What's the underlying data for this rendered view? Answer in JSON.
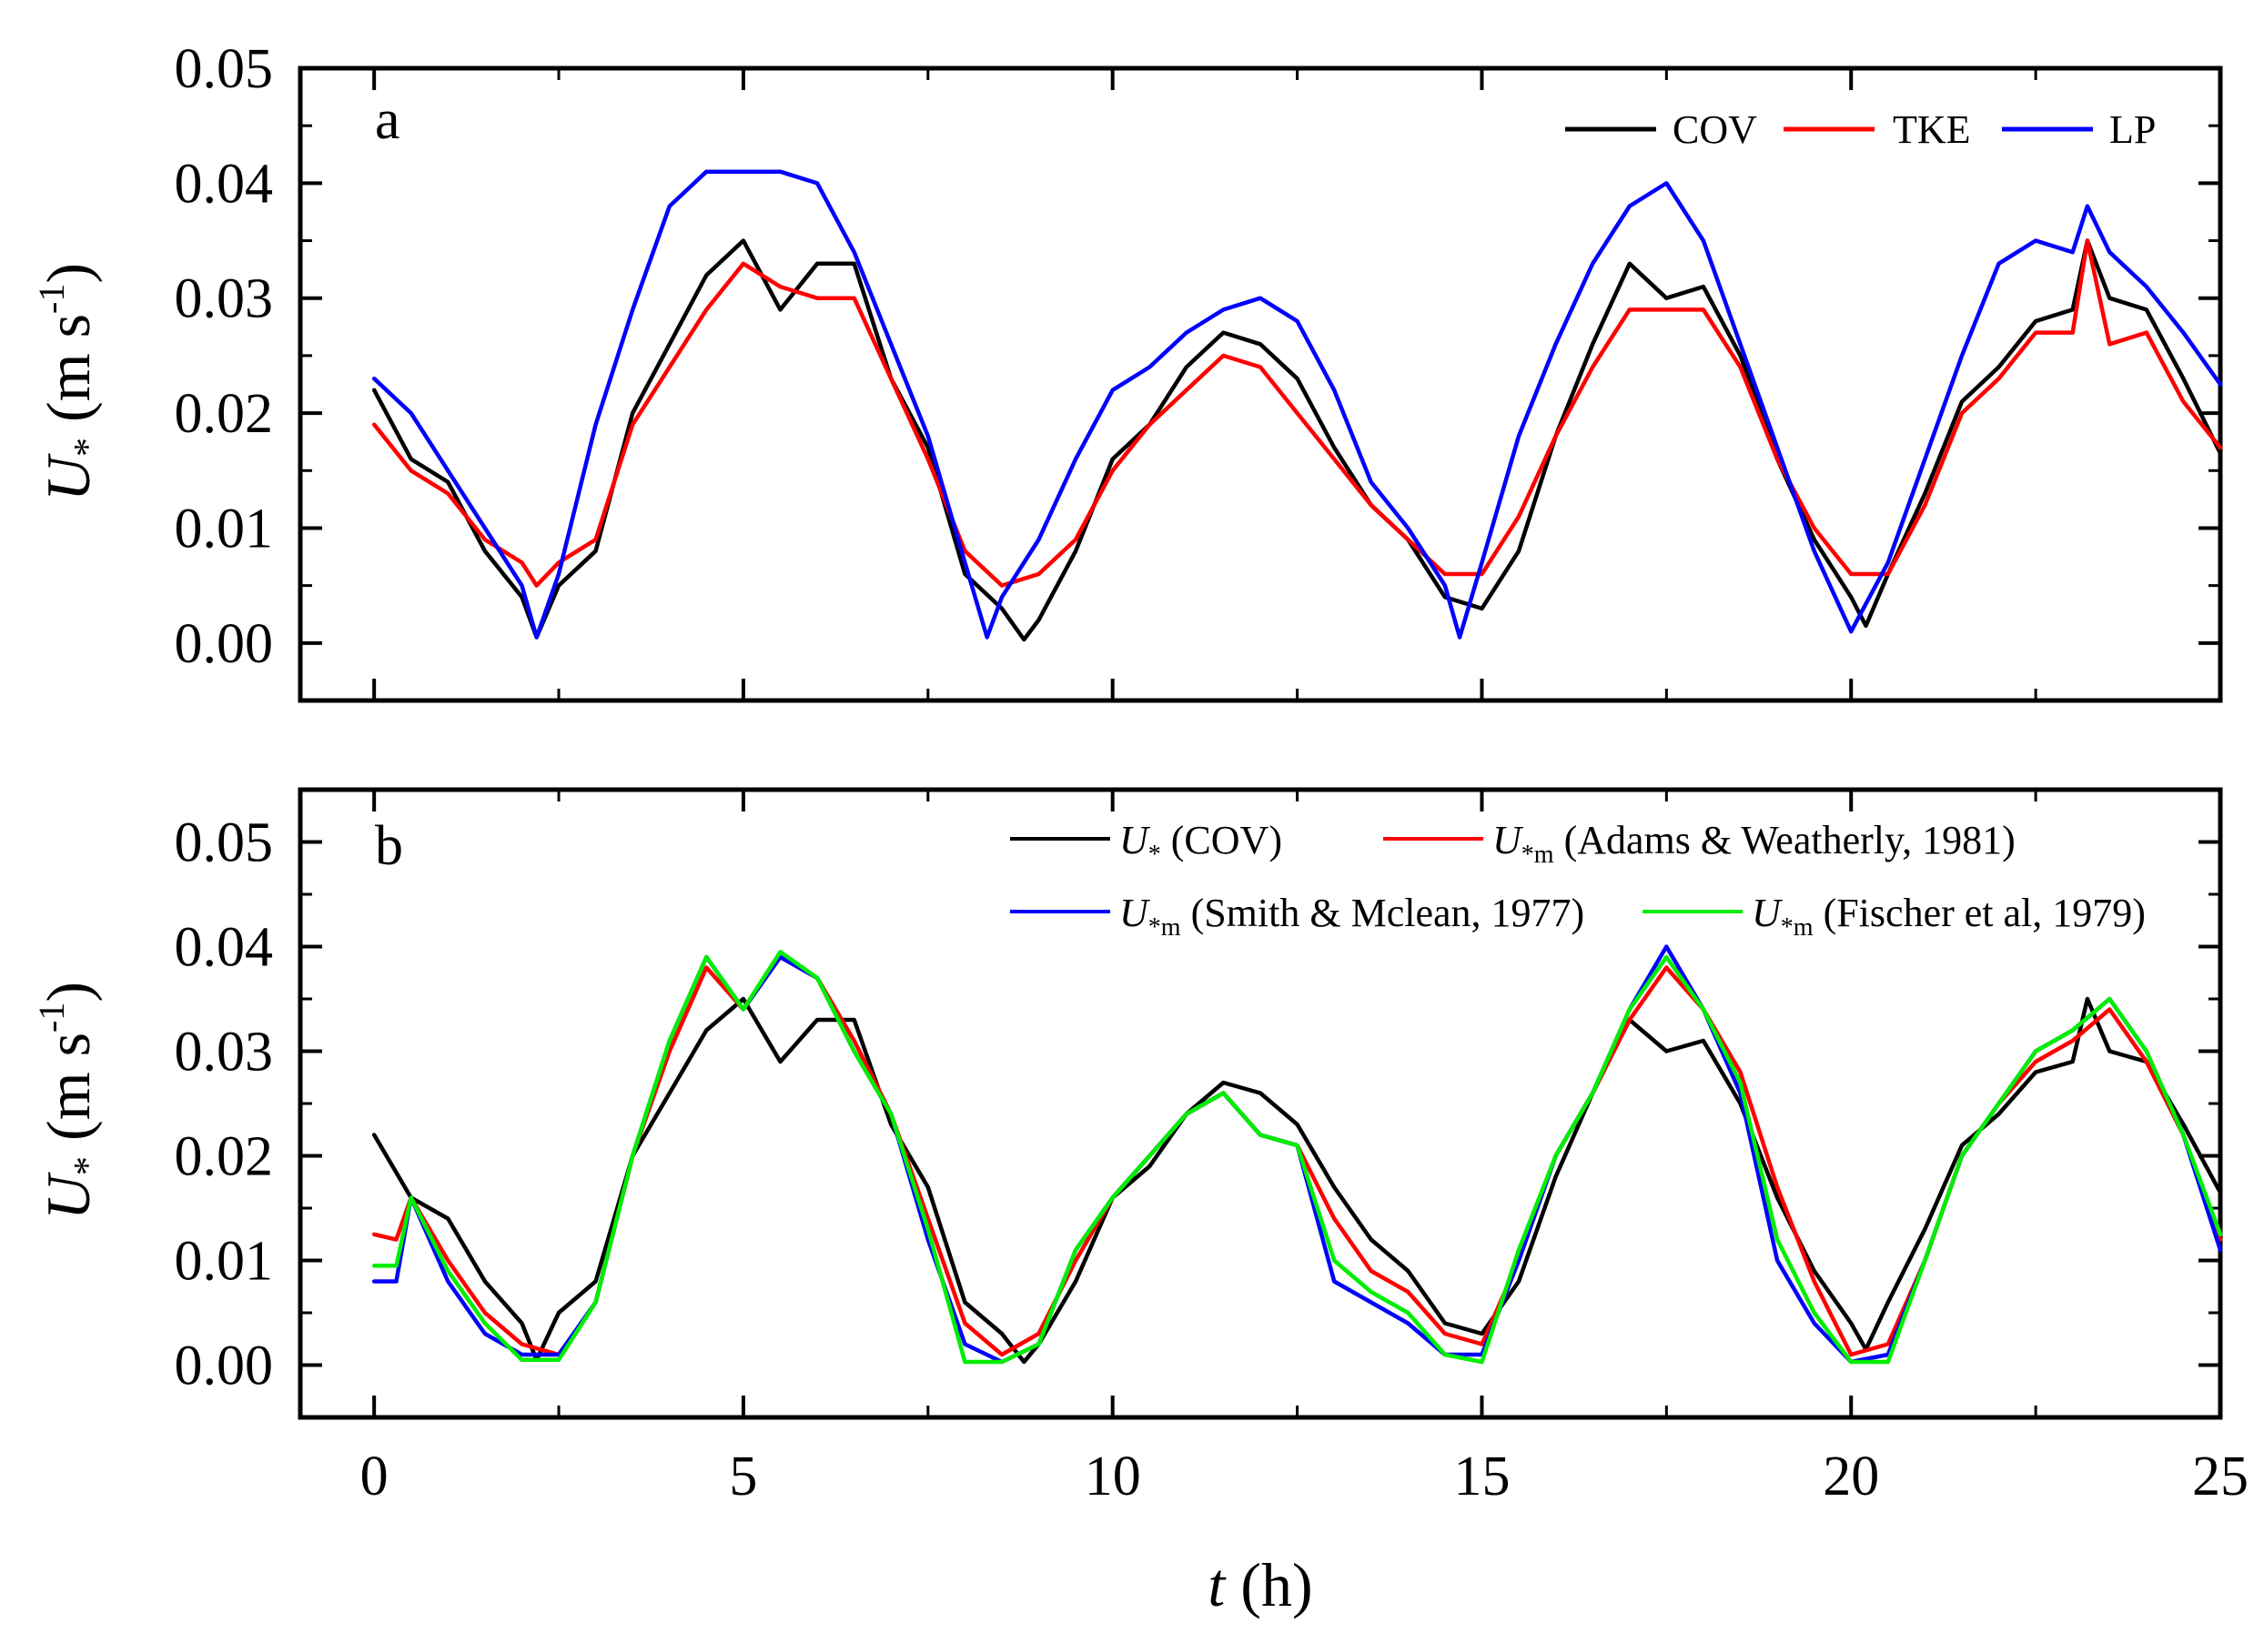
{
  "figure": {
    "xlabel_var": "t",
    "xlabel_unit": " (h)",
    "ylabel_var": "U",
    "ylabel_sub": "*",
    "ylabel_unit_open": " (m s",
    "ylabel_unit_sup": "-1",
    "ylabel_unit_close": ")"
  },
  "chart_data": [
    {
      "type": "line",
      "panel_label": "a",
      "xlabel": "t (h)",
      "ylabel": "U* (m s-1)",
      "xlim": [
        -1,
        25
      ],
      "ylim": [
        -0.005,
        0.05
      ],
      "x_ticks": [
        0,
        5,
        10,
        15,
        20,
        25
      ],
      "x_tick_labels": [
        "0",
        "5",
        "10",
        "15",
        "20",
        "25"
      ],
      "y_ticks": [
        0.0,
        0.01,
        0.02,
        0.03,
        0.04,
        0.05
      ],
      "y_tick_labels": [
        "0.00",
        "0.01",
        "0.02",
        "0.03",
        "0.04",
        "0.05"
      ],
      "legend_position": "top-right",
      "series": [
        {
          "name": "COV",
          "color": "#000000",
          "x": [
            0,
            0.5,
            1,
            1.5,
            2,
            2.2,
            2.5,
            3,
            3.5,
            4,
            4.5,
            5,
            5.5,
            6,
            6.5,
            7,
            7.5,
            8,
            8.5,
            8.8,
            9,
            9.5,
            10,
            10.5,
            11,
            11.5,
            12,
            12.5,
            13,
            13.5,
            14,
            14.5,
            15,
            15.5,
            16,
            16.5,
            17,
            17.5,
            18,
            18.5,
            19,
            19.5,
            20,
            20.2,
            20.5,
            21,
            21.5,
            22,
            22.5,
            23,
            23.2,
            23.5,
            24,
            24.5,
            25
          ],
          "y": [
            0.022,
            0.016,
            0.014,
            0.008,
            0.004,
            0.0005,
            0.005,
            0.008,
            0.02,
            0.026,
            0.032,
            0.035,
            0.029,
            0.033,
            0.033,
            0.023,
            0.017,
            0.006,
            0.003,
            0.0003,
            0.002,
            0.008,
            0.016,
            0.019,
            0.024,
            0.027,
            0.026,
            0.023,
            0.017,
            0.012,
            0.009,
            0.004,
            0.003,
            0.008,
            0.018,
            0.026,
            0.033,
            0.03,
            0.031,
            0.025,
            0.016,
            0.009,
            0.004,
            0.0015,
            0.006,
            0.013,
            0.021,
            0.024,
            0.028,
            0.029,
            0.035,
            0.03,
            0.029,
            0.023,
            0.0165
          ]
        },
        {
          "name": "TKE",
          "color": "#ff0000",
          "x": [
            0,
            0.5,
            1,
            1.5,
            2,
            2.2,
            2.5,
            3,
            3.5,
            4,
            4.5,
            5,
            5.5,
            6,
            6.5,
            7,
            7.5,
            8,
            8.5,
            9,
            9.5,
            10,
            10.5,
            11,
            11.5,
            12,
            12.5,
            13,
            13.5,
            14,
            14.5,
            15,
            15.5,
            16,
            16.5,
            17,
            17.5,
            18,
            18.5,
            19,
            19.5,
            20,
            20.5,
            21,
            21.5,
            22,
            22.5,
            23,
            23.2,
            23.5,
            24,
            24.5,
            25
          ],
          "y": [
            0.019,
            0.015,
            0.013,
            0.009,
            0.007,
            0.005,
            0.007,
            0.009,
            0.019,
            0.024,
            0.029,
            0.033,
            0.031,
            0.03,
            0.03,
            0.023,
            0.016,
            0.008,
            0.005,
            0.006,
            0.009,
            0.015,
            0.019,
            0.022,
            0.025,
            0.024,
            0.02,
            0.016,
            0.012,
            0.009,
            0.006,
            0.006,
            0.011,
            0.018,
            0.024,
            0.029,
            0.029,
            0.029,
            0.024,
            0.016,
            0.01,
            0.006,
            0.006,
            0.012,
            0.02,
            0.023,
            0.027,
            0.027,
            0.035,
            0.026,
            0.027,
            0.021,
            0.017
          ]
        },
        {
          "name": "LP",
          "color": "#0000ff",
          "x": [
            0,
            0.5,
            1,
            1.5,
            2,
            2.2,
            2.5,
            3,
            3.5,
            4,
            4.5,
            5,
            5.5,
            6,
            6.5,
            7,
            7.5,
            8,
            8.3,
            8.5,
            9,
            9.5,
            10,
            10.5,
            11,
            11.5,
            12,
            12.5,
            13,
            13.5,
            14,
            14.5,
            14.7,
            15,
            15.5,
            16,
            16.5,
            17,
            17.5,
            18,
            18.5,
            19,
            19.5,
            20,
            20.5,
            21,
            21.5,
            22,
            22.5,
            23,
            23.2,
            23.5,
            24,
            24.5,
            25
          ],
          "y": [
            0.023,
            0.02,
            0.015,
            0.01,
            0.005,
            0.0005,
            0.006,
            0.019,
            0.029,
            0.038,
            0.041,
            0.041,
            0.041,
            0.04,
            0.034,
            0.026,
            0.018,
            0.007,
            0.0005,
            0.004,
            0.009,
            0.016,
            0.022,
            0.024,
            0.027,
            0.029,
            0.03,
            0.028,
            0.022,
            0.014,
            0.01,
            0.005,
            0.0005,
            0.007,
            0.018,
            0.026,
            0.033,
            0.038,
            0.04,
            0.035,
            0.026,
            0.017,
            0.008,
            0.001,
            0.007,
            0.016,
            0.025,
            0.033,
            0.035,
            0.034,
            0.038,
            0.034,
            0.031,
            0.027,
            0.0225
          ]
        }
      ]
    },
    {
      "type": "line",
      "panel_label": "b",
      "xlabel": "t (h)",
      "ylabel": "U* (m s-1)",
      "xlim": [
        -1,
        25
      ],
      "ylim": [
        -0.005,
        0.055
      ],
      "x_ticks": [
        0,
        5,
        10,
        15,
        20,
        25
      ],
      "x_tick_labels": [
        "0",
        "5",
        "10",
        "15",
        "20",
        "25"
      ],
      "y_ticks": [
        0.0,
        0.01,
        0.02,
        0.03,
        0.04,
        0.05
      ],
      "y_tick_labels": [
        "0.00",
        "0.01",
        "0.02",
        "0.03",
        "0.04",
        "0.05"
      ],
      "legend_position": "top-right",
      "series": [
        {
          "name": "COV",
          "legend_sym": "U",
          "legend_sub": "*",
          "legend_rest": " (COV)",
          "color": "#000000",
          "x": [
            0,
            0.5,
            1,
            1.5,
            2,
            2.2,
            2.5,
            3,
            3.5,
            4,
            4.5,
            5,
            5.5,
            6,
            6.5,
            7,
            7.5,
            8,
            8.5,
            8.8,
            9,
            9.5,
            10,
            10.5,
            11,
            11.5,
            12,
            12.5,
            13,
            13.5,
            14,
            14.5,
            15,
            15.5,
            16,
            16.5,
            17,
            17.5,
            18,
            18.5,
            19,
            19.5,
            20,
            20.2,
            20.5,
            21,
            21.5,
            22,
            22.5,
            23,
            23.2,
            23.5,
            24,
            24.5,
            25
          ],
          "y": [
            0.022,
            0.016,
            0.014,
            0.008,
            0.004,
            0.0005,
            0.005,
            0.008,
            0.02,
            0.026,
            0.032,
            0.035,
            0.029,
            0.033,
            0.033,
            0.023,
            0.017,
            0.006,
            0.003,
            0.0003,
            0.002,
            0.008,
            0.016,
            0.019,
            0.024,
            0.027,
            0.026,
            0.023,
            0.017,
            0.012,
            0.009,
            0.004,
            0.003,
            0.008,
            0.018,
            0.026,
            0.033,
            0.03,
            0.031,
            0.025,
            0.016,
            0.009,
            0.004,
            0.0015,
            0.006,
            0.013,
            0.021,
            0.024,
            0.028,
            0.029,
            0.035,
            0.03,
            0.029,
            0.023,
            0.0165
          ]
        },
        {
          "name": "Adams & Weatherly, 1981",
          "legend_sym": "U",
          "legend_sub": "*m",
          "legend_rest": " (Adams & Weatherly, 1981)",
          "color": "#ff0000",
          "x": [
            0,
            0.3,
            0.5,
            1,
            1.5,
            2,
            2.5,
            3,
            3.5,
            4,
            4.5,
            5,
            5.5,
            6,
            6.5,
            7,
            7.5,
            8,
            8.5,
            9,
            9.5,
            10,
            10.5,
            11,
            11.5,
            12,
            12.5,
            13,
            13.5,
            14,
            14.5,
            15,
            15.5,
            16,
            16.5,
            17,
            17.5,
            18,
            18.5,
            19,
            19.5,
            20,
            20.5,
            21,
            21.5,
            22,
            22.5,
            23,
            23.5,
            24,
            24.5,
            25
          ],
          "y": [
            0.0125,
            0.012,
            0.016,
            0.01,
            0.005,
            0.002,
            0.001,
            0.006,
            0.02,
            0.03,
            0.038,
            0.034,
            0.039,
            0.037,
            0.031,
            0.024,
            0.014,
            0.004,
            0.001,
            0.003,
            0.01,
            0.016,
            0.02,
            0.024,
            0.026,
            0.022,
            0.021,
            0.014,
            0.009,
            0.007,
            0.003,
            0.002,
            0.01,
            0.02,
            0.026,
            0.033,
            0.038,
            0.034,
            0.028,
            0.017,
            0.008,
            0.001,
            0.002,
            0.01,
            0.02,
            0.025,
            0.029,
            0.031,
            0.034,
            0.029,
            0.022,
            0.012
          ]
        },
        {
          "name": "Smith & Mclean, 1977",
          "legend_sym": "U",
          "legend_sub": "*m",
          "legend_rest": " (Smith & Mclean, 1977)",
          "color": "#0000ff",
          "x": [
            0,
            0.3,
            0.5,
            1,
            1.5,
            2,
            2.5,
            3,
            3.5,
            4,
            4.5,
            5,
            5.5,
            6,
            6.5,
            7,
            7.5,
            8,
            8.5,
            9,
            9.5,
            10,
            10.5,
            11,
            11.5,
            12,
            12.5,
            13,
            13.5,
            14,
            14.5,
            15,
            15.5,
            16,
            16.5,
            17,
            17.5,
            18,
            18.5,
            19,
            19.5,
            20,
            20.5,
            21,
            21.5,
            22,
            22.5,
            23,
            23.5,
            24,
            24.5,
            25
          ],
          "y": [
            0.008,
            0.008,
            0.016,
            0.008,
            0.003,
            0.001,
            0.001,
            0.006,
            0.02,
            0.031,
            0.039,
            0.034,
            0.039,
            0.037,
            0.03,
            0.024,
            0.012,
            0.002,
            0.0003,
            0.002,
            0.011,
            0.016,
            0.02,
            0.024,
            0.026,
            0.022,
            0.021,
            0.008,
            0.006,
            0.004,
            0.001,
            0.001,
            0.01,
            0.02,
            0.026,
            0.034,
            0.04,
            0.034,
            0.026,
            0.01,
            0.004,
            0.0003,
            0.001,
            0.01,
            0.02,
            0.025,
            0.03,
            0.032,
            0.035,
            0.03,
            0.022,
            0.011
          ]
        },
        {
          "name": "Fischer et al, 1979",
          "legend_sym": "U",
          "legend_sub": "*m",
          "legend_rest": " (Fischer et al, 1979)",
          "color": "#00ee00",
          "x": [
            0,
            0.3,
            0.5,
            1,
            1.5,
            2,
            2.5,
            3,
            3.5,
            4,
            4.5,
            5,
            5.5,
            6,
            6.5,
            7,
            7.5,
            8,
            8.5,
            9,
            9.5,
            10,
            10.5,
            11,
            11.5,
            12,
            12.5,
            13,
            13.5,
            14,
            14.5,
            15,
            15.5,
            16,
            16.5,
            17,
            17.5,
            18,
            18.5,
            19,
            19.5,
            20,
            20.5,
            21,
            21.5,
            22,
            22.5,
            23,
            23.5,
            24,
            24.5,
            25
          ],
          "y": [
            0.0095,
            0.0095,
            0.016,
            0.009,
            0.004,
            0.0005,
            0.0005,
            0.006,
            0.02,
            0.031,
            0.039,
            0.034,
            0.0395,
            0.037,
            0.03,
            0.024,
            0.013,
            0.0003,
            0.0003,
            0.002,
            0.011,
            0.016,
            0.02,
            0.024,
            0.026,
            0.022,
            0.021,
            0.01,
            0.007,
            0.005,
            0.001,
            0.0003,
            0.011,
            0.02,
            0.026,
            0.034,
            0.039,
            0.034,
            0.027,
            0.012,
            0.005,
            0.0003,
            0.0003,
            0.01,
            0.02,
            0.025,
            0.03,
            0.032,
            0.035,
            0.03,
            0.022,
            0.0125
          ]
        }
      ]
    }
  ]
}
